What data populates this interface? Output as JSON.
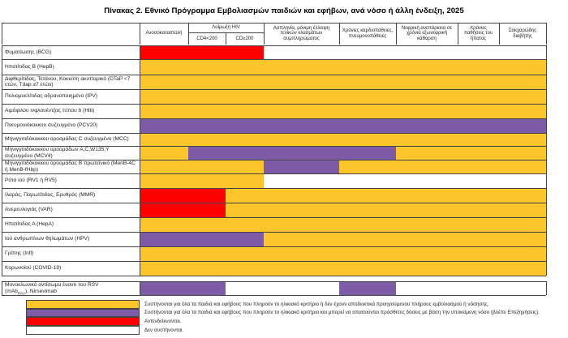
{
  "title": "Πίνακας 2. Εθνικό Πρόγραμμα Εμβολιασμών παιδιών και εφήβων, ανά νόσο ή άλλη ένδειξη, 2025",
  "header": {
    "columns": [
      "Ανοσοκαταστολή",
      "Ασπληνία, μόνιμη έλλειψη τελικών κλασμάτων συμπληρώματος",
      "Χρόνιες καρδιοπάθειες, πνευμονοπάθειες",
      "Νεφρική ανεπάρκεια σε χρόνια εξωνεφρική κάθαρση",
      "Χρόνιες παθήσεις του ήπατος",
      "Σακχαρώδης διαβήτης"
    ],
    "hiv": {
      "label": "Λοίμωξη HIV",
      "sub": [
        "CD4<200",
        "CD≥200"
      ]
    }
  },
  "rows": [
    {
      "name": "Φυματίωσης (BCG)",
      "cells": [
        "#ff0000",
        "#ff0000",
        "#ff0000",
        "#ffffff",
        "#ffffff",
        "#ffffff",
        "#ffffff",
        "#ffffff"
      ]
    },
    {
      "name": "Ηπατίτιδας Β (HepB)",
      "cells": [
        "#fbc52b",
        "#fbc52b",
        "#fbc52b",
        "#fbc52b",
        "#fbc52b",
        "#fbc52b",
        "#fbc52b",
        "#fbc52b"
      ]
    },
    {
      "name": "Διφθερίτιδας, Τετάνου, Κοκκύτη ακυτταρικό (DTaP <7 ετών, Tdap ≥7 ετών)",
      "cells": [
        "#fbc52b",
        "#fbc52b",
        "#fbc52b",
        "#fbc52b",
        "#fbc52b",
        "#fbc52b",
        "#fbc52b",
        "#fbc52b"
      ]
    },
    {
      "name": "Πολιομυελίτιδας αδρανοποιημένο (IPV)",
      "cells": [
        "#fbc52b",
        "#fbc52b",
        "#fbc52b",
        "#fbc52b",
        "#fbc52b",
        "#fbc52b",
        "#fbc52b",
        "#fbc52b"
      ]
    },
    {
      "name": "Αιμόφιλου ινφλουέντζας τύπου b (Hib)",
      "cells": [
        "#fbc52b",
        "#fbc52b",
        "#fbc52b",
        "#fbc52b",
        "#fbc52b",
        "#fbc52b",
        "#fbc52b",
        "#fbc52b"
      ]
    },
    {
      "name": "Πνευμονιόκοκκου συζευγμένο (PCV20)",
      "cells": [
        "#7d5ba6",
        "#7d5ba6",
        "#7d5ba6",
        "#7d5ba6",
        "#7d5ba6",
        "#7d5ba6",
        "#7d5ba6",
        "#7d5ba6"
      ]
    },
    {
      "name": "Μηνιγγιτιδόκοκκου οροομάδας C συζευγμένο (MCC)",
      "cells": [
        "#fbc52b",
        "#fbc52b",
        "#fbc52b",
        "#fbc52b",
        "#fbc52b",
        "#fbc52b",
        "#fbc52b",
        "#fbc52b"
      ]
    },
    {
      "name": "Μηνιγγιτιδόκοκκου οροομάδων A,C,W135,Y συζευγμένο (MCV4)",
      "cells": [
        "#fbc52b",
        "#7d5ba6",
        "#7d5ba6",
        "#7d5ba6",
        "#7d5ba6",
        "#fbc52b",
        "#fbc52b",
        "#fbc52b"
      ]
    },
    {
      "name": "Μηνιγγιτιδόκοκκου οροομάδας Β πρωτεϊνικό (MenB-4C ή MenB-fHbp)",
      "cells": [
        "#fbc52b",
        "#fbc52b",
        "#fbc52b",
        "#7d5ba6",
        "#fbc52b",
        "#fbc52b",
        "#fbc52b",
        "#fbc52b"
      ]
    },
    {
      "name": "Ρότα ιού (RV1 ή RV5)",
      "cells": [
        "#fbc52b",
        "#fbc52b",
        "#fbc52b",
        "#ffffff",
        "#ffffff",
        "#ffffff",
        "#ffffff",
        "#ffffff"
      ]
    },
    {
      "name": "Ιλαράς, Παρωτίτιδας, Ερυθράς (MMR)",
      "cells": [
        "#ff0000",
        "#ff0000",
        "#fbc52b",
        "#fbc52b",
        "#fbc52b",
        "#fbc52b",
        "#fbc52b",
        "#fbc52b"
      ]
    },
    {
      "name": "Ανεμευλογιάς (VAR)",
      "cells": [
        "#ff0000",
        "#ff0000",
        "#fbc52b",
        "#fbc52b",
        "#fbc52b",
        "#fbc52b",
        "#fbc52b",
        "#fbc52b"
      ]
    },
    {
      "name": "Ηπατίτιδας Α (HepA)",
      "cells": [
        "#fbc52b",
        "#fbc52b",
        "#fbc52b",
        "#fbc52b",
        "#fbc52b",
        "#fbc52b",
        "#fbc52b",
        "#fbc52b"
      ]
    },
    {
      "name": "Ιού ανθρωπίνων θηλωμάτων (HPV)",
      "cells": [
        "#7d5ba6",
        "#7d5ba6",
        "#7d5ba6",
        "#fbc52b",
        "#fbc52b",
        "#fbc52b",
        "#fbc52b",
        "#fbc52b"
      ]
    },
    {
      "name": "Γρίπης (Infl)",
      "cells": [
        "#fbc52b",
        "#fbc52b",
        "#fbc52b",
        "#fbc52b",
        "#fbc52b",
        "#fbc52b",
        "#fbc52b",
        "#fbc52b"
      ]
    },
    {
      "name": "Κορωνοϊού (COVID-19)",
      "cells": [
        "#fbc52b",
        "#fbc52b",
        "#fbc52b",
        "#fbc52b",
        "#fbc52b",
        "#fbc52b",
        "#fbc52b",
        "#fbc52b"
      ]
    }
  ],
  "rsv": {
    "name": "Μονοκλωνικό αντίσωμα έναντι του RSV",
    "name2": "(mAb",
    "sub": "RSV",
    "name3": "), Nirsevimab",
    "cells": [
      "#7d5ba6",
      "#7d5ba6",
      "#ffffff",
      "#ffffff",
      "#7d5ba6",
      "#ffffff",
      "#ffffff",
      "#ffffff"
    ]
  },
  "legend": [
    {
      "color": "#fbc52b",
      "text": "Συστήνονται για όλα τα παιδιά και εφήβους που  πληρούν το ηλικιακό κριτήριο ή δεν έχουν αποδεικτικά προηγούμενου πλήρους εμβολιασμού ή νόσησης."
    },
    {
      "color": "#7d5ba6",
      "text": "Συστήνονται για όλα τα παιδιά και εφήβους που πληρούν το ηλικιακό κριτήριο και μπορεί να απαιτούνται πρόσθετες δόσεις με βάση την υποκείμενη νόσο (βλέπε Επεξηγήσεις)."
    },
    {
      "color": "#ff0000",
      "text": "Αντενδείκνυνται."
    },
    {
      "color": "#ffffff",
      "text": "Δεν συστήνονται."
    }
  ]
}
